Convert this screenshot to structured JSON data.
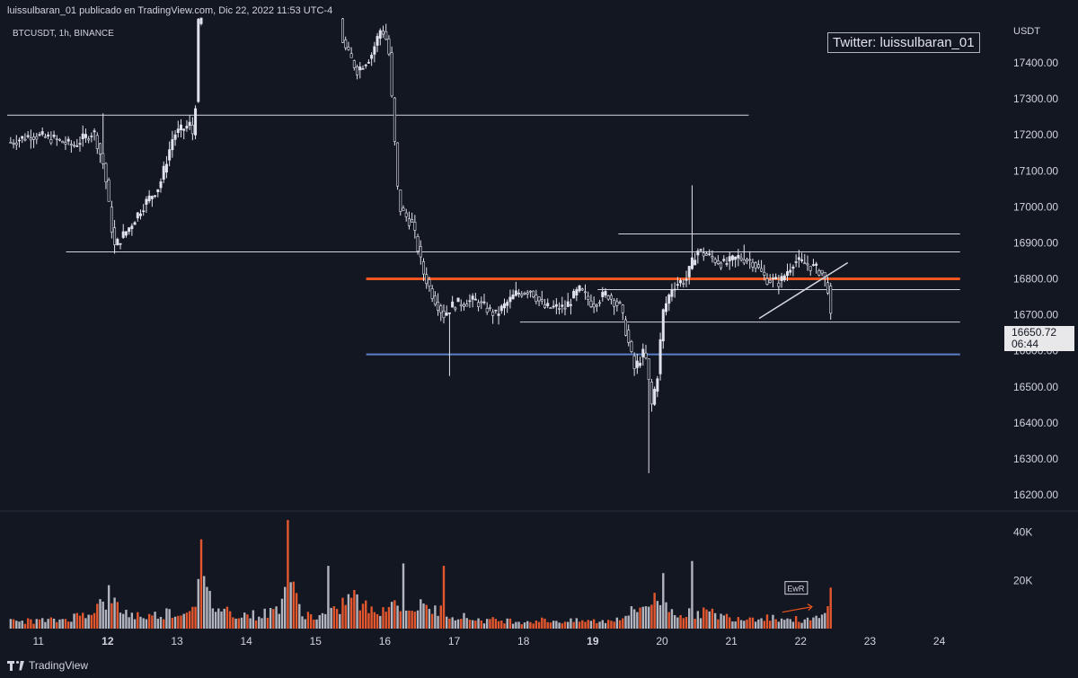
{
  "header": {
    "published": "luissulbaran_01 publicado en TradingView.com, Dic 22, 2022 11:53 UTC-4",
    "symbol": "BTCUSDT, 1h, BINANCE",
    "watermark": "Twitter: luissulbaran_01",
    "currency": "USDT"
  },
  "last_price": {
    "price": "16650.72",
    "countdown": "06:44"
  },
  "brand": "TradingView",
  "colors": {
    "background": "#131722",
    "candle": "#e0e3eb",
    "volume_up": "#b2b5be",
    "volume_down": "#e4572e",
    "resistance": "#f0561d",
    "support": "#5b7fc7",
    "level": "#d1d4dc"
  },
  "chart_data": {
    "type": "candlestick",
    "price_ticks": [
      17400,
      17300,
      17200,
      17100,
      17000,
      16900,
      16800,
      16700,
      16600,
      16500,
      16400,
      16300,
      16200
    ],
    "price_tick_labels": [
      "17400.00",
      "17300.00",
      "17200.00",
      "17100.00",
      "17000.00",
      "16900.00",
      "16800.00",
      "16700.00",
      "16600.00",
      "16500.00",
      "16400.00",
      "16300.00",
      "16200.00"
    ],
    "volume_tick_labels": [
      "40K",
      "20K"
    ],
    "volume_ticks": [
      40000,
      20000
    ],
    "ylim_price": [
      16160,
      17525
    ],
    "ylim_volume": [
      0,
      48000
    ],
    "x_labels": [
      "11",
      "12",
      "13",
      "14",
      "15",
      "16",
      "17",
      "18",
      "19",
      "20",
      "21",
      "22",
      "23",
      "24"
    ],
    "x_label_bold": [
      "12",
      "19"
    ],
    "xlim_days": [
      10.55,
      24.9
    ],
    "price_path": [
      [
        10.6,
        17180
      ],
      [
        10.9,
        17200
      ],
      [
        11.2,
        17190
      ],
      [
        11.5,
        17170
      ],
      [
        11.8,
        17210
      ],
      [
        11.95,
        17110
      ],
      [
        12.05,
        16950
      ],
      [
        12.1,
        16890
      ],
      [
        12.3,
        16940
      ],
      [
        12.5,
        17000
      ],
      [
        12.75,
        17060
      ],
      [
        12.95,
        17200
      ],
      [
        13.2,
        17230
      ],
      [
        13.25,
        17180
      ],
      [
        13.3,
        17500
      ],
      [
        13.45,
        17620
      ],
      [
        13.6,
        17650
      ],
      [
        14.0,
        17640
      ],
      [
        14.5,
        17630
      ],
      [
        15.0,
        17640
      ],
      [
        15.3,
        17600
      ],
      [
        15.4,
        17450
      ],
      [
        15.6,
        17380
      ],
      [
        15.8,
        17420
      ],
      [
        15.95,
        17500
      ],
      [
        16.05,
        17450
      ],
      [
        16.2,
        17000
      ],
      [
        16.4,
        16950
      ],
      [
        16.55,
        16820
      ],
      [
        16.7,
        16750
      ],
      [
        16.85,
        16700
      ],
      [
        17.0,
        16730
      ],
      [
        17.3,
        16740
      ],
      [
        17.6,
        16700
      ],
      [
        17.9,
        16760
      ],
      [
        18.1,
        16770
      ],
      [
        18.3,
        16720
      ],
      [
        18.6,
        16720
      ],
      [
        18.8,
        16770
      ],
      [
        19.0,
        16730
      ],
      [
        19.2,
        16760
      ],
      [
        19.4,
        16720
      ],
      [
        19.6,
        16550
      ],
      [
        19.75,
        16600
      ],
      [
        19.85,
        16450
      ],
      [
        19.95,
        16550
      ],
      [
        20.0,
        16700
      ],
      [
        20.15,
        16780
      ],
      [
        20.35,
        16800
      ],
      [
        20.5,
        16880
      ],
      [
        20.7,
        16860
      ],
      [
        20.9,
        16840
      ],
      [
        21.1,
        16860
      ],
      [
        21.3,
        16850
      ],
      [
        21.5,
        16800
      ],
      [
        21.7,
        16790
      ],
      [
        21.9,
        16850
      ],
      [
        22.1,
        16840
      ],
      [
        22.3,
        16820
      ],
      [
        22.4,
        16770
      ],
      [
        22.45,
        16650
      ]
    ],
    "extremes": {
      "high": [
        [
          11.95,
          17260
        ],
        [
          20.42,
          17060
        ],
        [
          21.2,
          16895
        ]
      ],
      "low": [
        [
          12.1,
          16870
        ],
        [
          16.95,
          16530
        ],
        [
          19.8,
          16260
        ]
      ]
    },
    "levels": [
      {
        "name": "level-17255",
        "price": 17255,
        "from": 10.55,
        "to": 21.25,
        "color": "#d1d4dc",
        "width": 1
      },
      {
        "name": "level-16925",
        "price": 16925,
        "from": 19.37,
        "to": 24.3,
        "color": "#d1d4dc",
        "width": 1
      },
      {
        "name": "level-16875",
        "price": 16875,
        "from": 11.4,
        "to": 24.3,
        "color": "#d1d4dc",
        "width": 1
      },
      {
        "name": "level-16800",
        "price": 16800,
        "from": 15.73,
        "to": 24.3,
        "color": "#f0561d",
        "width": 3
      },
      {
        "name": "level-16770",
        "price": 16770,
        "from": 19.07,
        "to": 24.3,
        "color": "#d1d4dc",
        "width": 1
      },
      {
        "name": "level-16680",
        "price": 16680,
        "from": 17.95,
        "to": 24.3,
        "color": "#d1d4dc",
        "width": 1
      },
      {
        "name": "level-16590",
        "price": 16590,
        "from": 15.73,
        "to": 24.3,
        "color": "#5b7fc7",
        "width": 2
      }
    ],
    "trendline": {
      "from": [
        21.4,
        16690
      ],
      "to": [
        22.68,
        16845
      ]
    },
    "volume_path": [
      [
        10.6,
        3000
      ],
      [
        11.3,
        3500
      ],
      [
        11.6,
        5500
      ],
      [
        11.85,
        9000
      ],
      [
        12.0,
        12000
      ],
      [
        12.3,
        6000
      ],
      [
        12.6,
        5000
      ],
      [
        12.9,
        7000
      ],
      [
        13.1,
        6000
      ],
      [
        13.35,
        18000
      ],
      [
        13.55,
        9000
      ],
      [
        13.9,
        6000
      ],
      [
        14.2,
        5500
      ],
      [
        14.45,
        8000
      ],
      [
        14.6,
        20000
      ],
      [
        14.8,
        7000
      ],
      [
        15.0,
        4500
      ],
      [
        15.3,
        7000
      ],
      [
        15.5,
        14000
      ],
      [
        15.8,
        7000
      ],
      [
        16.2,
        11000
      ],
      [
        16.5,
        9000
      ],
      [
        16.8,
        7500
      ],
      [
        17.1,
        5000
      ],
      [
        17.4,
        3500
      ],
      [
        17.7,
        3500
      ],
      [
        18.0,
        3000
      ],
      [
        18.3,
        3500
      ],
      [
        18.6,
        3000
      ],
      [
        18.9,
        3200
      ],
      [
        19.2,
        3000
      ],
      [
        19.5,
        6000
      ],
      [
        19.7,
        9000
      ],
      [
        19.85,
        12000
      ],
      [
        20.05,
        9000
      ],
      [
        20.3,
        6000
      ],
      [
        20.6,
        7000
      ],
      [
        20.9,
        5000
      ],
      [
        21.2,
        4500
      ],
      [
        21.5,
        5000
      ],
      [
        21.8,
        4000
      ],
      [
        22.1,
        3500
      ],
      [
        22.3,
        4500
      ],
      [
        22.45,
        10000
      ]
    ],
    "volume_spikes": [
      [
        12.0,
        18000
      ],
      [
        13.35,
        37000
      ],
      [
        14.6,
        45000
      ],
      [
        15.2,
        26000
      ],
      [
        16.25,
        27000
      ],
      [
        16.85,
        26000
      ],
      [
        20.0,
        23000
      ],
      [
        20.45,
        28000
      ],
      [
        22.42,
        17000
      ]
    ],
    "annotations": [
      {
        "text": "EwR",
        "day": 21.93,
        "volume": 16500
      }
    ]
  }
}
